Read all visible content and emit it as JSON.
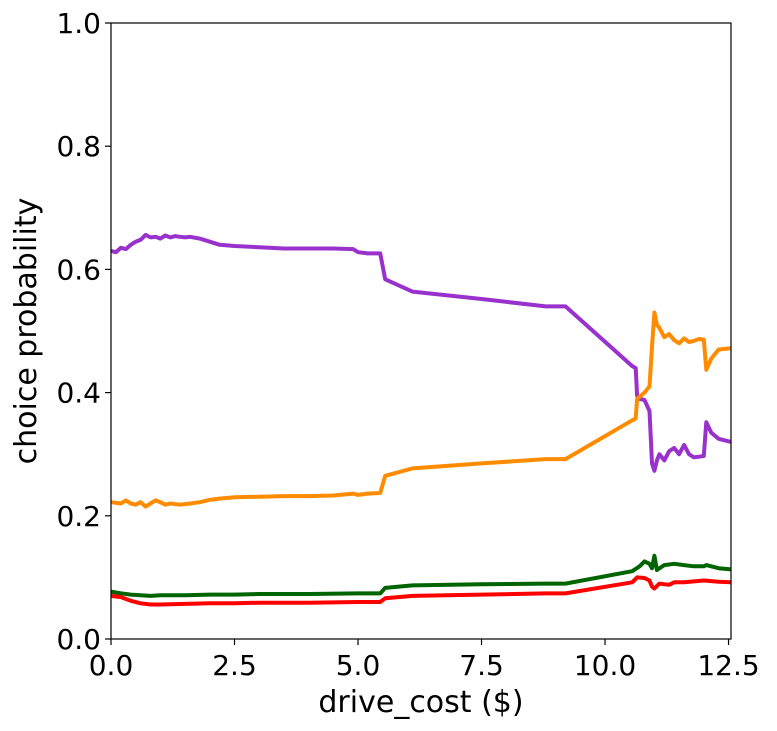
{
  "chart_data": {
    "type": "line",
    "title": "",
    "xlabel": "drive_cost ($)",
    "ylabel": "choice probability",
    "xlim": [
      0.0,
      12.55
    ],
    "ylim": [
      0.0,
      1.0
    ],
    "x_ticks": [
      "0.0",
      "2.5",
      "5.0",
      "7.5",
      "10.0",
      "12.5"
    ],
    "y_ticks": [
      "0.0",
      "0.2",
      "0.4",
      "0.6",
      "0.8",
      "1.0"
    ],
    "grid": false,
    "legend": false,
    "series": [
      {
        "color": "#9932CC",
        "points": [
          [
            0.0,
            0.63
          ],
          [
            0.1,
            0.628
          ],
          [
            0.2,
            0.635
          ],
          [
            0.3,
            0.633
          ],
          [
            0.4,
            0.64
          ],
          [
            0.5,
            0.645
          ],
          [
            0.6,
            0.648
          ],
          [
            0.7,
            0.656
          ],
          [
            0.8,
            0.652
          ],
          [
            0.9,
            0.653
          ],
          [
            1.0,
            0.65
          ],
          [
            1.1,
            0.655
          ],
          [
            1.2,
            0.652
          ],
          [
            1.3,
            0.654
          ],
          [
            1.4,
            0.653
          ],
          [
            1.5,
            0.652
          ],
          [
            1.6,
            0.653
          ],
          [
            1.8,
            0.65
          ],
          [
            2.0,
            0.645
          ],
          [
            2.2,
            0.64
          ],
          [
            2.5,
            0.638
          ],
          [
            3.0,
            0.636
          ],
          [
            3.5,
            0.634
          ],
          [
            4.0,
            0.634
          ],
          [
            4.5,
            0.634
          ],
          [
            4.9,
            0.633
          ],
          [
            5.0,
            0.628
          ],
          [
            5.2,
            0.626
          ],
          [
            5.45,
            0.626
          ],
          [
            5.55,
            0.584
          ],
          [
            6.1,
            0.564
          ],
          [
            7.5,
            0.552
          ],
          [
            8.8,
            0.54
          ],
          [
            9.2,
            0.54
          ],
          [
            10.55,
            0.443
          ],
          [
            10.62,
            0.44
          ],
          [
            10.65,
            0.395
          ],
          [
            10.7,
            0.39
          ],
          [
            10.8,
            0.388
          ],
          [
            10.9,
            0.37
          ],
          [
            10.95,
            0.285
          ],
          [
            11.0,
            0.273
          ],
          [
            11.05,
            0.29
          ],
          [
            11.1,
            0.3
          ],
          [
            11.2,
            0.29
          ],
          [
            11.3,
            0.305
          ],
          [
            11.4,
            0.31
          ],
          [
            11.5,
            0.3
          ],
          [
            11.6,
            0.315
          ],
          [
            11.7,
            0.3
          ],
          [
            11.8,
            0.295
          ],
          [
            11.9,
            0.296
          ],
          [
            12.0,
            0.297
          ],
          [
            12.05,
            0.352
          ],
          [
            12.15,
            0.335
          ],
          [
            12.3,
            0.325
          ],
          [
            12.55,
            0.32
          ]
        ]
      },
      {
        "color": "#FF8C00",
        "points": [
          [
            0.0,
            0.222
          ],
          [
            0.2,
            0.22
          ],
          [
            0.3,
            0.225
          ],
          [
            0.4,
            0.22
          ],
          [
            0.5,
            0.218
          ],
          [
            0.6,
            0.222
          ],
          [
            0.7,
            0.215
          ],
          [
            0.8,
            0.22
          ],
          [
            0.9,
            0.225
          ],
          [
            1.0,
            0.222
          ],
          [
            1.1,
            0.218
          ],
          [
            1.2,
            0.22
          ],
          [
            1.4,
            0.218
          ],
          [
            1.6,
            0.22
          ],
          [
            1.8,
            0.222
          ],
          [
            2.0,
            0.226
          ],
          [
            2.2,
            0.228
          ],
          [
            2.5,
            0.23
          ],
          [
            3.0,
            0.231
          ],
          [
            3.5,
            0.232
          ],
          [
            4.0,
            0.232
          ],
          [
            4.5,
            0.233
          ],
          [
            4.9,
            0.236
          ],
          [
            5.0,
            0.234
          ],
          [
            5.2,
            0.236
          ],
          [
            5.45,
            0.237
          ],
          [
            5.55,
            0.265
          ],
          [
            6.1,
            0.277
          ],
          [
            7.5,
            0.285
          ],
          [
            8.8,
            0.292
          ],
          [
            9.2,
            0.292
          ],
          [
            10.55,
            0.355
          ],
          [
            10.62,
            0.358
          ],
          [
            10.65,
            0.39
          ],
          [
            10.8,
            0.4
          ],
          [
            10.9,
            0.41
          ],
          [
            10.95,
            0.475
          ],
          [
            11.0,
            0.53
          ],
          [
            11.05,
            0.51
          ],
          [
            11.1,
            0.505
          ],
          [
            11.2,
            0.49
          ],
          [
            11.3,
            0.495
          ],
          [
            11.4,
            0.485
          ],
          [
            11.5,
            0.48
          ],
          [
            11.6,
            0.488
          ],
          [
            11.7,
            0.482
          ],
          [
            11.8,
            0.484
          ],
          [
            11.9,
            0.487
          ],
          [
            12.0,
            0.486
          ],
          [
            12.05,
            0.437
          ],
          [
            12.15,
            0.455
          ],
          [
            12.3,
            0.47
          ],
          [
            12.55,
            0.472
          ]
        ]
      },
      {
        "color": "#006400",
        "points": [
          [
            0.0,
            0.077
          ],
          [
            0.2,
            0.074
          ],
          [
            0.4,
            0.072
          ],
          [
            0.6,
            0.071
          ],
          [
            0.8,
            0.07
          ],
          [
            1.0,
            0.071
          ],
          [
            1.5,
            0.071
          ],
          [
            2.0,
            0.072
          ],
          [
            2.5,
            0.072
          ],
          [
            3.0,
            0.073
          ],
          [
            4.0,
            0.073
          ],
          [
            5.0,
            0.074
          ],
          [
            5.45,
            0.074
          ],
          [
            5.55,
            0.083
          ],
          [
            6.1,
            0.087
          ],
          [
            7.5,
            0.089
          ],
          [
            8.8,
            0.09
          ],
          [
            9.2,
            0.09
          ],
          [
            10.55,
            0.11
          ],
          [
            10.7,
            0.118
          ],
          [
            10.8,
            0.126
          ],
          [
            10.9,
            0.122
          ],
          [
            10.95,
            0.115
          ],
          [
            11.0,
            0.135
          ],
          [
            11.05,
            0.112
          ],
          [
            11.2,
            0.12
          ],
          [
            11.4,
            0.122
          ],
          [
            11.6,
            0.12
          ],
          [
            11.8,
            0.118
          ],
          [
            12.0,
            0.118
          ],
          [
            12.05,
            0.12
          ],
          [
            12.3,
            0.115
          ],
          [
            12.55,
            0.113
          ]
        ]
      },
      {
        "color": "#FF0000",
        "points": [
          [
            0.0,
            0.07
          ],
          [
            0.2,
            0.068
          ],
          [
            0.4,
            0.062
          ],
          [
            0.6,
            0.058
          ],
          [
            0.8,
            0.056
          ],
          [
            1.0,
            0.056
          ],
          [
            1.5,
            0.057
          ],
          [
            2.0,
            0.058
          ],
          [
            2.5,
            0.058
          ],
          [
            3.0,
            0.059
          ],
          [
            4.0,
            0.059
          ],
          [
            5.0,
            0.06
          ],
          [
            5.45,
            0.06
          ],
          [
            5.55,
            0.066
          ],
          [
            6.1,
            0.07
          ],
          [
            7.5,
            0.072
          ],
          [
            8.8,
            0.074
          ],
          [
            9.2,
            0.074
          ],
          [
            10.55,
            0.092
          ],
          [
            10.65,
            0.1
          ],
          [
            10.8,
            0.099
          ],
          [
            10.9,
            0.095
          ],
          [
            10.95,
            0.085
          ],
          [
            11.0,
            0.082
          ],
          [
            11.1,
            0.09
          ],
          [
            11.3,
            0.088
          ],
          [
            11.4,
            0.092
          ],
          [
            11.6,
            0.092
          ],
          [
            12.0,
            0.095
          ],
          [
            12.3,
            0.093
          ],
          [
            12.55,
            0.092
          ]
        ]
      }
    ]
  }
}
